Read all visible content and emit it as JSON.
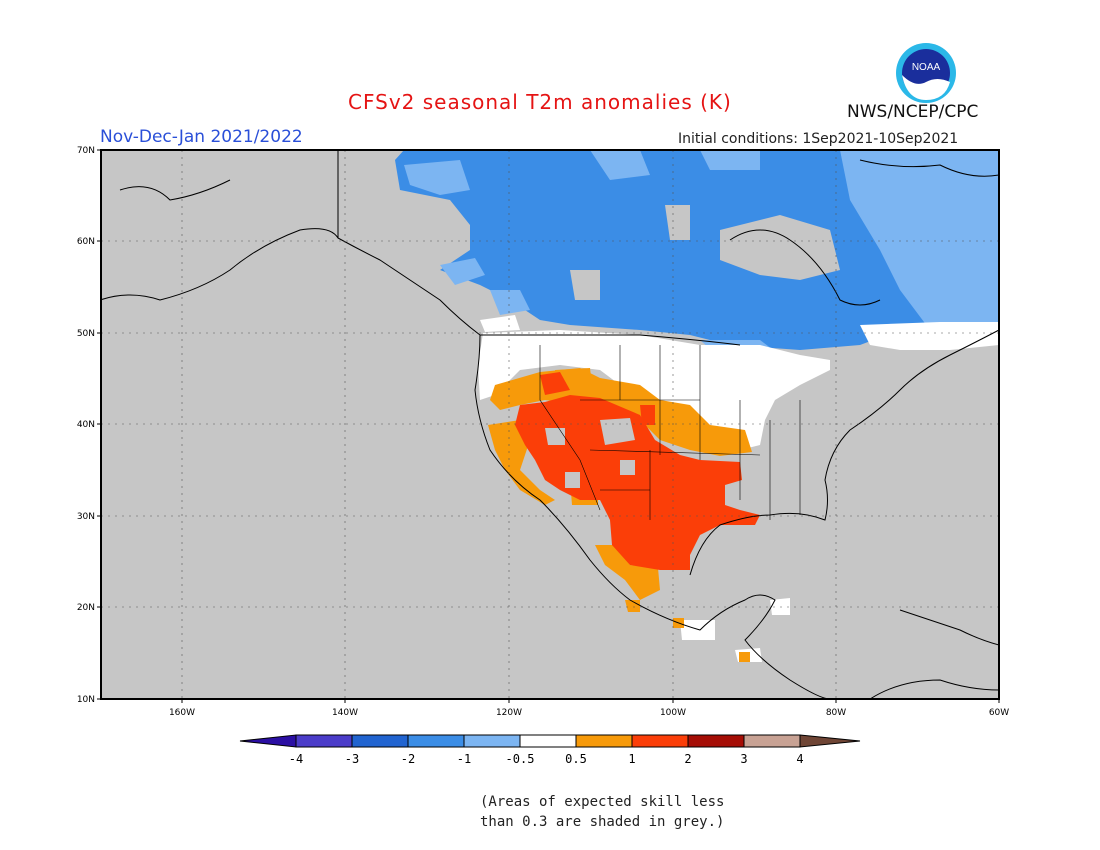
{
  "header": {
    "title": "CFSv2 seasonal T2m anomalies (K)",
    "period": "Nov-Dec-Jan 2021/2022",
    "initial_conditions": "Initial conditions: 1Sep2021-10Sep2021",
    "agency": "NWS/NCEP/CPC",
    "logo_text": "NOAA"
  },
  "map": {
    "projection": "lat-lon",
    "lon_range": [
      "170W",
      "60W"
    ],
    "lat_range": [
      "10N",
      "70N"
    ],
    "lat_labels": [
      "70N",
      "60N",
      "50N",
      "40N",
      "30N",
      "20N",
      "10N"
    ],
    "lon_labels": [
      "160W",
      "140W",
      "120W",
      "100W",
      "80W",
      "60W"
    ],
    "grid": "dotted",
    "low_skill_color": "#c6c6c6"
  },
  "colorbar": {
    "labels": [
      "-4",
      "-3",
      "-2",
      "-1",
      "-0.5",
      "0.5",
      "1",
      "2",
      "3",
      "4"
    ],
    "colors": [
      "#2b0fa3",
      "#4b3cc9",
      "#2164d0",
      "#3b8de6",
      "#7cb5f2",
      "#ffffff",
      "#f79a0a",
      "#fb3e08",
      "#a50d05",
      "#c8a294",
      "#6f4535"
    ]
  },
  "note": {
    "line1": "(Areas of expected skill less",
    "line2": "than 0.3 are shaded in grey.)"
  }
}
